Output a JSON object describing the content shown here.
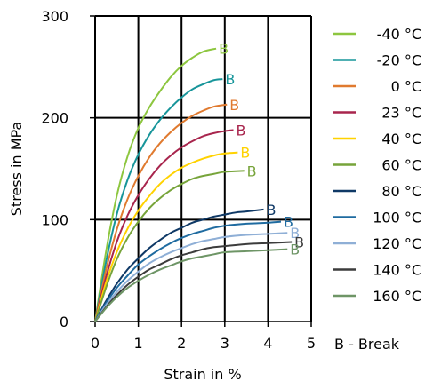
{
  "chart_data": {
    "type": "line",
    "title": "",
    "xlabel": "Strain in %",
    "ylabel": "Stress in MPa",
    "xlim": [
      0,
      5
    ],
    "ylim": [
      0,
      300
    ],
    "x_ticks": [
      "0",
      "1",
      "2",
      "3",
      "4",
      "5"
    ],
    "y_ticks": [
      "0",
      "100",
      "200",
      "300"
    ],
    "grid": true,
    "legend_position": "right",
    "break_marker": "B",
    "break_note": "B - Break",
    "series": [
      {
        "name": "-40 °C",
        "color": "#8dc63f",
        "break": [
          2.8,
          268
        ],
        "points": [
          [
            0,
            0
          ],
          [
            0.25,
            68
          ],
          [
            0.5,
            123
          ],
          [
            0.75,
            162
          ],
          [
            1.0,
            190
          ],
          [
            1.25,
            210
          ],
          [
            1.5,
            226
          ],
          [
            1.75,
            240
          ],
          [
            2.0,
            251
          ],
          [
            2.25,
            259
          ],
          [
            2.5,
            265
          ],
          [
            2.8,
            268
          ]
        ]
      },
      {
        "name": "-20 °C",
        "color": "#17959a",
        "break": [
          2.95,
          238
        ],
        "points": [
          [
            0,
            0
          ],
          [
            0.25,
            58
          ],
          [
            0.5,
            105
          ],
          [
            0.75,
            139
          ],
          [
            1.0,
            164
          ],
          [
            1.25,
            183
          ],
          [
            1.5,
            198
          ],
          [
            1.75,
            210
          ],
          [
            2.0,
            220
          ],
          [
            2.25,
            228
          ],
          [
            2.5,
            233
          ],
          [
            2.75,
            237
          ],
          [
            2.95,
            238
          ]
        ]
      },
      {
        "name": "0 °C",
        "color": "#e07a2f",
        "break": [
          3.05,
          213
        ],
        "points": [
          [
            0,
            0
          ],
          [
            0.25,
            50
          ],
          [
            0.5,
            90
          ],
          [
            0.75,
            120
          ],
          [
            1.0,
            143
          ],
          [
            1.25,
            161
          ],
          [
            1.5,
            175
          ],
          [
            1.75,
            186
          ],
          [
            2.0,
            195
          ],
          [
            2.25,
            202
          ],
          [
            2.5,
            207
          ],
          [
            2.75,
            211
          ],
          [
            3.05,
            213
          ]
        ]
      },
      {
        "name": "23 °C",
        "color": "#a8254d",
        "break": [
          3.2,
          188
        ],
        "points": [
          [
            0,
            0
          ],
          [
            0.25,
            43
          ],
          [
            0.5,
            78
          ],
          [
            0.75,
            104
          ],
          [
            1.0,
            124
          ],
          [
            1.25,
            140
          ],
          [
            1.5,
            153
          ],
          [
            1.75,
            163
          ],
          [
            2.0,
            171
          ],
          [
            2.25,
            177
          ],
          [
            2.5,
            182
          ],
          [
            2.75,
            185
          ],
          [
            3.0,
            187
          ],
          [
            3.2,
            188
          ]
        ]
      },
      {
        "name": "40 °C",
        "color": "#ffd200",
        "break": [
          3.3,
          166
        ],
        "points": [
          [
            0,
            0
          ],
          [
            0.25,
            38
          ],
          [
            0.5,
            68
          ],
          [
            0.75,
            91
          ],
          [
            1.0,
            109
          ],
          [
            1.25,
            123
          ],
          [
            1.5,
            135
          ],
          [
            1.75,
            144
          ],
          [
            2.0,
            151
          ],
          [
            2.25,
            156
          ],
          [
            2.5,
            160
          ],
          [
            2.75,
            163
          ],
          [
            3.0,
            165
          ],
          [
            3.3,
            166
          ]
        ]
      },
      {
        "name": "60 °C",
        "color": "#77a43a",
        "break": [
          3.45,
          148
        ],
        "points": [
          [
            0,
            0
          ],
          [
            0.25,
            33
          ],
          [
            0.5,
            61
          ],
          [
            0.75,
            82
          ],
          [
            1.0,
            98
          ],
          [
            1.25,
            111
          ],
          [
            1.5,
            121
          ],
          [
            1.75,
            129
          ],
          [
            2.0,
            135
          ],
          [
            2.25,
            140
          ],
          [
            2.5,
            143
          ],
          [
            2.75,
            145
          ],
          [
            3.0,
            147
          ],
          [
            3.45,
            148
          ]
        ]
      },
      {
        "name": "80 °C",
        "color": "#0f3966",
        "break": [
          3.9,
          110
        ],
        "points": [
          [
            0,
            0
          ],
          [
            0.25,
            20
          ],
          [
            0.5,
            37
          ],
          [
            0.75,
            51
          ],
          [
            1.0,
            62
          ],
          [
            1.25,
            72
          ],
          [
            1.5,
            80
          ],
          [
            1.75,
            87
          ],
          [
            2.0,
            92
          ],
          [
            2.25,
            97
          ],
          [
            2.5,
            100
          ],
          [
            2.75,
            103
          ],
          [
            3.0,
            105
          ],
          [
            3.25,
            107
          ],
          [
            3.5,
            108
          ],
          [
            3.9,
            110
          ]
        ]
      },
      {
        "name": "100 °C",
        "color": "#1f6ba0",
        "break": [
          4.3,
          98
        ],
        "points": [
          [
            0,
            0
          ],
          [
            0.25,
            18
          ],
          [
            0.5,
            33
          ],
          [
            0.75,
            45
          ],
          [
            1.0,
            56
          ],
          [
            1.25,
            64
          ],
          [
            1.5,
            71
          ],
          [
            1.75,
            77
          ],
          [
            2.0,
            82
          ],
          [
            2.25,
            86
          ],
          [
            2.5,
            89
          ],
          [
            2.75,
            92
          ],
          [
            3.0,
            94
          ],
          [
            3.5,
            96
          ],
          [
            4.0,
            97
          ],
          [
            4.3,
            98
          ]
        ]
      },
      {
        "name": "120 °C",
        "color": "#8fafd6",
        "break": [
          4.45,
          87
        ],
        "points": [
          [
            0,
            0
          ],
          [
            0.25,
            16
          ],
          [
            0.5,
            29
          ],
          [
            0.75,
            40
          ],
          [
            1.0,
            49
          ],
          [
            1.25,
            57
          ],
          [
            1.5,
            63
          ],
          [
            1.75,
            68
          ],
          [
            2.0,
            72
          ],
          [
            2.25,
            76
          ],
          [
            2.5,
            79
          ],
          [
            2.75,
            81
          ],
          [
            3.0,
            83
          ],
          [
            3.5,
            85
          ],
          [
            4.0,
            86
          ],
          [
            4.45,
            87
          ]
        ]
      },
      {
        "name": "140 °C",
        "color": "#3c3c3c",
        "break": [
          4.55,
          78
        ],
        "points": [
          [
            0,
            0
          ],
          [
            0.25,
            14
          ],
          [
            0.5,
            26
          ],
          [
            0.75,
            36
          ],
          [
            1.0,
            44
          ],
          [
            1.25,
            51
          ],
          [
            1.5,
            56
          ],
          [
            1.75,
            61
          ],
          [
            2.0,
            65
          ],
          [
            2.25,
            68
          ],
          [
            2.5,
            71
          ],
          [
            2.75,
            73
          ],
          [
            3.0,
            74
          ],
          [
            3.5,
            76
          ],
          [
            4.0,
            77
          ],
          [
            4.55,
            78
          ]
        ]
      },
      {
        "name": "160 °C",
        "color": "#6e9566",
        "break": [
          4.45,
          71
        ],
        "points": [
          [
            0,
            0
          ],
          [
            0.25,
            13
          ],
          [
            0.5,
            24
          ],
          [
            0.75,
            33
          ],
          [
            1.0,
            40
          ],
          [
            1.25,
            46
          ],
          [
            1.5,
            51
          ],
          [
            1.75,
            55
          ],
          [
            2.0,
            59
          ],
          [
            2.25,
            62
          ],
          [
            2.5,
            64
          ],
          [
            2.75,
            66
          ],
          [
            3.0,
            68
          ],
          [
            3.5,
            69
          ],
          [
            4.0,
            70
          ],
          [
            4.45,
            71
          ]
        ]
      }
    ]
  }
}
